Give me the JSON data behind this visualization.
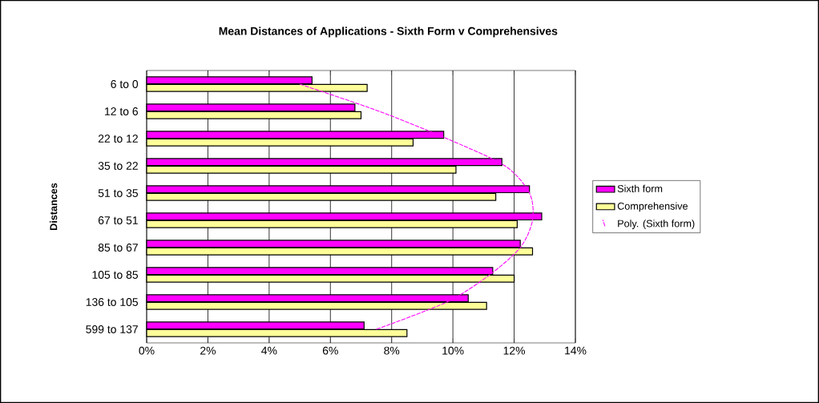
{
  "chart_data": {
    "type": "bar",
    "orientation": "horizontal",
    "title": "Mean Distances of Applications - Sixth Form v Comprehensives",
    "ylabel": "Distances",
    "categories": [
      "6 to 0",
      "12 to 6",
      "22 to 12",
      "35 to 22",
      "51 to 35",
      "67 to 51",
      "85 to 67",
      "105 to 85",
      "136 to 105",
      "599 to 137"
    ],
    "series": [
      {
        "name": "Sixth form",
        "color": "#ff00ff",
        "values": [
          5.4,
          6.8,
          9.7,
          11.6,
          12.5,
          12.9,
          12.2,
          11.3,
          10.5,
          7.1
        ]
      },
      {
        "name": "Comprehensive",
        "color": "#ffff99",
        "values": [
          7.2,
          7.0,
          8.7,
          10.1,
          11.4,
          12.1,
          12.6,
          12.0,
          11.1,
          8.5
        ]
      },
      {
        "name": "Poly. (Sixth form)",
        "type": "line",
        "color": "#ff00ff",
        "line_style": "dashed",
        "values": [
          5.0,
          7.6,
          9.8,
          11.7,
          12.5,
          12.6,
          12.2,
          11.2,
          9.8,
          7.5
        ]
      }
    ],
    "xlim": [
      0,
      14
    ],
    "xticks": [
      {
        "value": 0,
        "label": "0%"
      },
      {
        "value": 2,
        "label": "2%"
      },
      {
        "value": 4,
        "label": "4%"
      },
      {
        "value": 6,
        "label": "6%"
      },
      {
        "value": 8,
        "label": "8%"
      },
      {
        "value": 10,
        "label": "10%"
      },
      {
        "value": 12,
        "label": "12%"
      },
      {
        "value": 14,
        "label": "14%"
      }
    ],
    "grid": "x",
    "legend": "right"
  }
}
